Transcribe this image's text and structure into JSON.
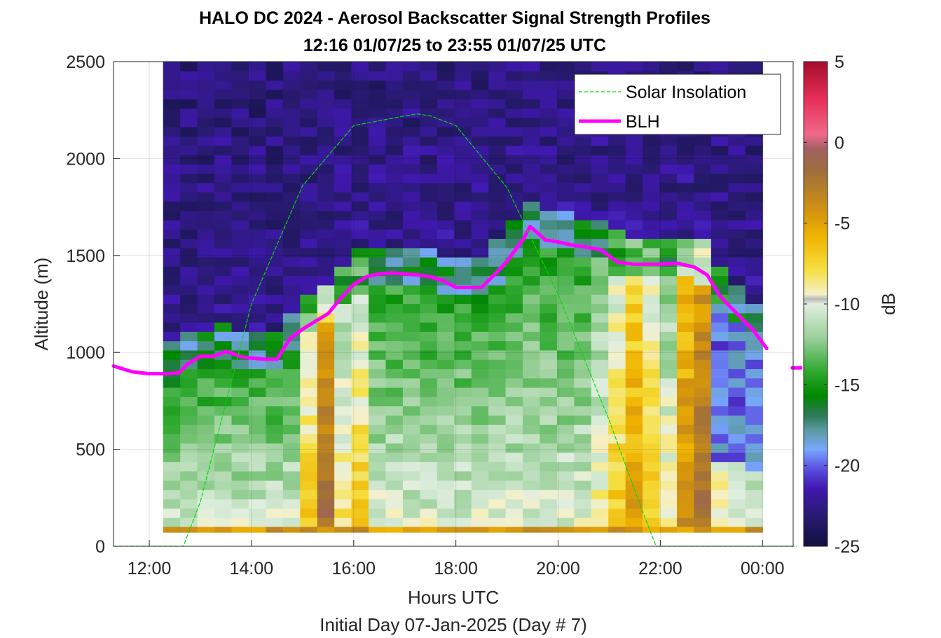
{
  "chart_data": {
    "type": "heatmap",
    "title": "HALO DC 2024 - Aerosol Backscatter Signal Strength Profiles",
    "subtitle": "12:16 01/07/25 to 23:55 01/07/25  UTC",
    "xlabel": "Hours UTC",
    "xlabel2": "Initial Day 07-Jan-2025 (Day # 7)",
    "ylabel": "Altitude (m)",
    "xlim_hours": [
      11.3,
      24.6
    ],
    "ylim": [
      0,
      2500
    ],
    "xticks": [
      "12:00",
      "14:00",
      "16:00",
      "18:00",
      "20:00",
      "22:00",
      "00:00"
    ],
    "yticks": [
      "0",
      "500",
      "1000",
      "1500",
      "2000",
      "2500"
    ],
    "grid": true,
    "colorbar": {
      "label": "dB",
      "range": [
        -25,
        5
      ],
      "ticks": [
        "5",
        "0",
        "-5",
        "-10",
        "-15",
        "-20",
        "-25"
      ]
    },
    "heatmap": {
      "time_range_hours": [
        12.27,
        24.0
      ],
      "altitude_range_m": [
        100,
        2500
      ],
      "time_bins": 35,
      "altitude_bins": 50
    },
    "legend": {
      "position": "top-right",
      "entries": [
        {
          "name": "Solar Insolation",
          "color": "#00dd00",
          "style": "dashed"
        },
        {
          "name": "BLH",
          "color": "#ff00ff",
          "style": "solid"
        }
      ]
    },
    "series": [
      {
        "name": "BLH",
        "color": "#ff00ff",
        "x": [
          "11:18",
          "11:40",
          "12:00",
          "12:20",
          "12:35",
          "12:45",
          "13:00",
          "13:15",
          "13:30",
          "13:50",
          "14:15",
          "14:30",
          "14:45",
          "15:00",
          "15:30",
          "15:45",
          "16:00",
          "16:15",
          "16:30",
          "16:45",
          "17:00",
          "17:15",
          "17:30",
          "17:45",
          "18:00",
          "18:15",
          "18:30",
          "18:45",
          "19:00",
          "19:20",
          "19:27",
          "19:35",
          "19:45",
          "20:00",
          "20:15",
          "20:30",
          "20:50",
          "21:10",
          "21:30",
          "22:00",
          "22:20",
          "22:40",
          "22:55",
          "23:10",
          "23:30",
          "23:50",
          "00:05"
        ],
        "y": [
          930,
          900,
          890,
          890,
          895,
          940,
          980,
          980,
          1005,
          975,
          965,
          965,
          1070,
          1120,
          1200,
          1280,
          1350,
          1390,
          1405,
          1410,
          1405,
          1400,
          1390,
          1370,
          1335,
          1335,
          1335,
          1400,
          1470,
          1590,
          1650,
          1620,
          1580,
          1570,
          1555,
          1545,
          1530,
          1465,
          1455,
          1455,
          1460,
          1440,
          1400,
          1290,
          1200,
          1110,
          1020
        ]
      },
      {
        "name": "BLH",
        "color": "#ff00ff",
        "x": [
          "00:35",
          "00:45"
        ],
        "y": [
          920,
          920
        ]
      },
      {
        "name": "Solar Insolation",
        "color": "#00dd00",
        "x": [
          "11:18",
          "12:40",
          "13:00",
          "14:00",
          "15:00",
          "16:00",
          "17:00",
          "17:15",
          "17:30",
          "18:00",
          "19:00",
          "20:00",
          "21:00",
          "21:40",
          "21:55",
          "24:40"
        ],
        "y": [
          0,
          0,
          230,
          1250,
          1860,
          2170,
          2220,
          2230,
          2220,
          2170,
          1850,
          1300,
          650,
          170,
          0,
          0
        ]
      }
    ]
  }
}
